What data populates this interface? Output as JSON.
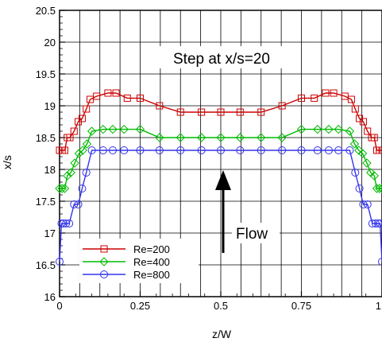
{
  "chart_data": {
    "type": "line",
    "title": "",
    "xlabel": "z/W",
    "ylabel": "x/s",
    "xlim": [
      0,
      1
    ],
    "ylim": [
      16,
      20.5
    ],
    "xticks": [
      "0",
      "0.25",
      "0.5",
      "0.75",
      "1"
    ],
    "yticks": [
      "16",
      "16.5",
      "17",
      "17.5",
      "18",
      "18.5",
      "19",
      "19.5",
      "20",
      "20.5"
    ],
    "grid": true,
    "legend_position": "bottom-left",
    "annotations": {
      "step_text": "Step at x/s=20",
      "flow_text": "Flow"
    },
    "series": [
      {
        "name": "Re=200",
        "color": "#cc0000",
        "marker": "square",
        "points": [
          [
            0.0,
            18.3
          ],
          [
            0.008,
            18.3
          ],
          [
            0.016,
            18.3
          ],
          [
            0.024,
            18.5
          ],
          [
            0.032,
            18.5
          ],
          [
            0.045,
            18.6
          ],
          [
            0.058,
            18.75
          ],
          [
            0.07,
            18.8
          ],
          [
            0.083,
            18.95
          ],
          [
            0.095,
            19.1
          ],
          [
            0.115,
            19.15
          ],
          [
            0.15,
            19.2
          ],
          [
            0.175,
            19.2
          ],
          [
            0.21,
            19.12
          ],
          [
            0.25,
            19.12
          ],
          [
            0.31,
            19.0
          ],
          [
            0.375,
            18.9
          ],
          [
            0.44,
            18.9
          ],
          [
            0.5,
            18.9
          ],
          [
            0.56,
            18.9
          ],
          [
            0.625,
            18.9
          ],
          [
            0.69,
            19.0
          ],
          [
            0.75,
            19.12
          ],
          [
            0.79,
            19.12
          ],
          [
            0.825,
            19.2
          ],
          [
            0.85,
            19.2
          ],
          [
            0.885,
            19.15
          ],
          [
            0.905,
            19.1
          ],
          [
            0.917,
            18.95
          ],
          [
            0.93,
            18.8
          ],
          [
            0.942,
            18.75
          ],
          [
            0.955,
            18.6
          ],
          [
            0.968,
            18.5
          ],
          [
            0.976,
            18.5
          ],
          [
            0.984,
            18.3
          ],
          [
            0.992,
            18.3
          ],
          [
            1.0,
            18.3
          ]
        ]
      },
      {
        "name": "Re=400",
        "color": "#00bb00",
        "marker": "diamond",
        "points": [
          [
            0.0,
            17.7
          ],
          [
            0.008,
            17.7
          ],
          [
            0.016,
            17.7
          ],
          [
            0.024,
            17.9
          ],
          [
            0.035,
            17.95
          ],
          [
            0.047,
            18.1
          ],
          [
            0.06,
            18.25
          ],
          [
            0.072,
            18.3
          ],
          [
            0.085,
            18.4
          ],
          [
            0.1,
            18.6
          ],
          [
            0.135,
            18.63
          ],
          [
            0.165,
            18.63
          ],
          [
            0.2,
            18.63
          ],
          [
            0.25,
            18.63
          ],
          [
            0.31,
            18.5
          ],
          [
            0.375,
            18.5
          ],
          [
            0.44,
            18.5
          ],
          [
            0.5,
            18.5
          ],
          [
            0.56,
            18.5
          ],
          [
            0.625,
            18.5
          ],
          [
            0.69,
            18.5
          ],
          [
            0.75,
            18.63
          ],
          [
            0.8,
            18.63
          ],
          [
            0.835,
            18.63
          ],
          [
            0.865,
            18.63
          ],
          [
            0.9,
            18.6
          ],
          [
            0.915,
            18.4
          ],
          [
            0.928,
            18.3
          ],
          [
            0.94,
            18.25
          ],
          [
            0.953,
            18.1
          ],
          [
            0.965,
            17.95
          ],
          [
            0.976,
            17.9
          ],
          [
            0.984,
            17.7
          ],
          [
            0.992,
            17.7
          ],
          [
            1.0,
            17.7
          ]
        ]
      },
      {
        "name": "Re=800",
        "color": "#3333ee",
        "marker": "circle",
        "points": [
          [
            0.0,
            16.55
          ],
          [
            0.006,
            17.15
          ],
          [
            0.012,
            17.15
          ],
          [
            0.02,
            17.15
          ],
          [
            0.03,
            17.15
          ],
          [
            0.045,
            17.45
          ],
          [
            0.058,
            17.45
          ],
          [
            0.07,
            17.7
          ],
          [
            0.083,
            17.95
          ],
          [
            0.1,
            18.3
          ],
          [
            0.135,
            18.3
          ],
          [
            0.165,
            18.3
          ],
          [
            0.2,
            18.3
          ],
          [
            0.25,
            18.3
          ],
          [
            0.31,
            18.3
          ],
          [
            0.375,
            18.3
          ],
          [
            0.44,
            18.3
          ],
          [
            0.5,
            18.3
          ],
          [
            0.56,
            18.3
          ],
          [
            0.625,
            18.3
          ],
          [
            0.69,
            18.3
          ],
          [
            0.75,
            18.3
          ],
          [
            0.8,
            18.3
          ],
          [
            0.835,
            18.3
          ],
          [
            0.865,
            18.3
          ],
          [
            0.9,
            18.3
          ],
          [
            0.917,
            17.95
          ],
          [
            0.93,
            17.7
          ],
          [
            0.942,
            17.45
          ],
          [
            0.955,
            17.45
          ],
          [
            0.97,
            17.15
          ],
          [
            0.98,
            17.15
          ],
          [
            0.988,
            17.15
          ],
          [
            0.994,
            17.15
          ],
          [
            1.0,
            16.55
          ]
        ]
      }
    ]
  }
}
